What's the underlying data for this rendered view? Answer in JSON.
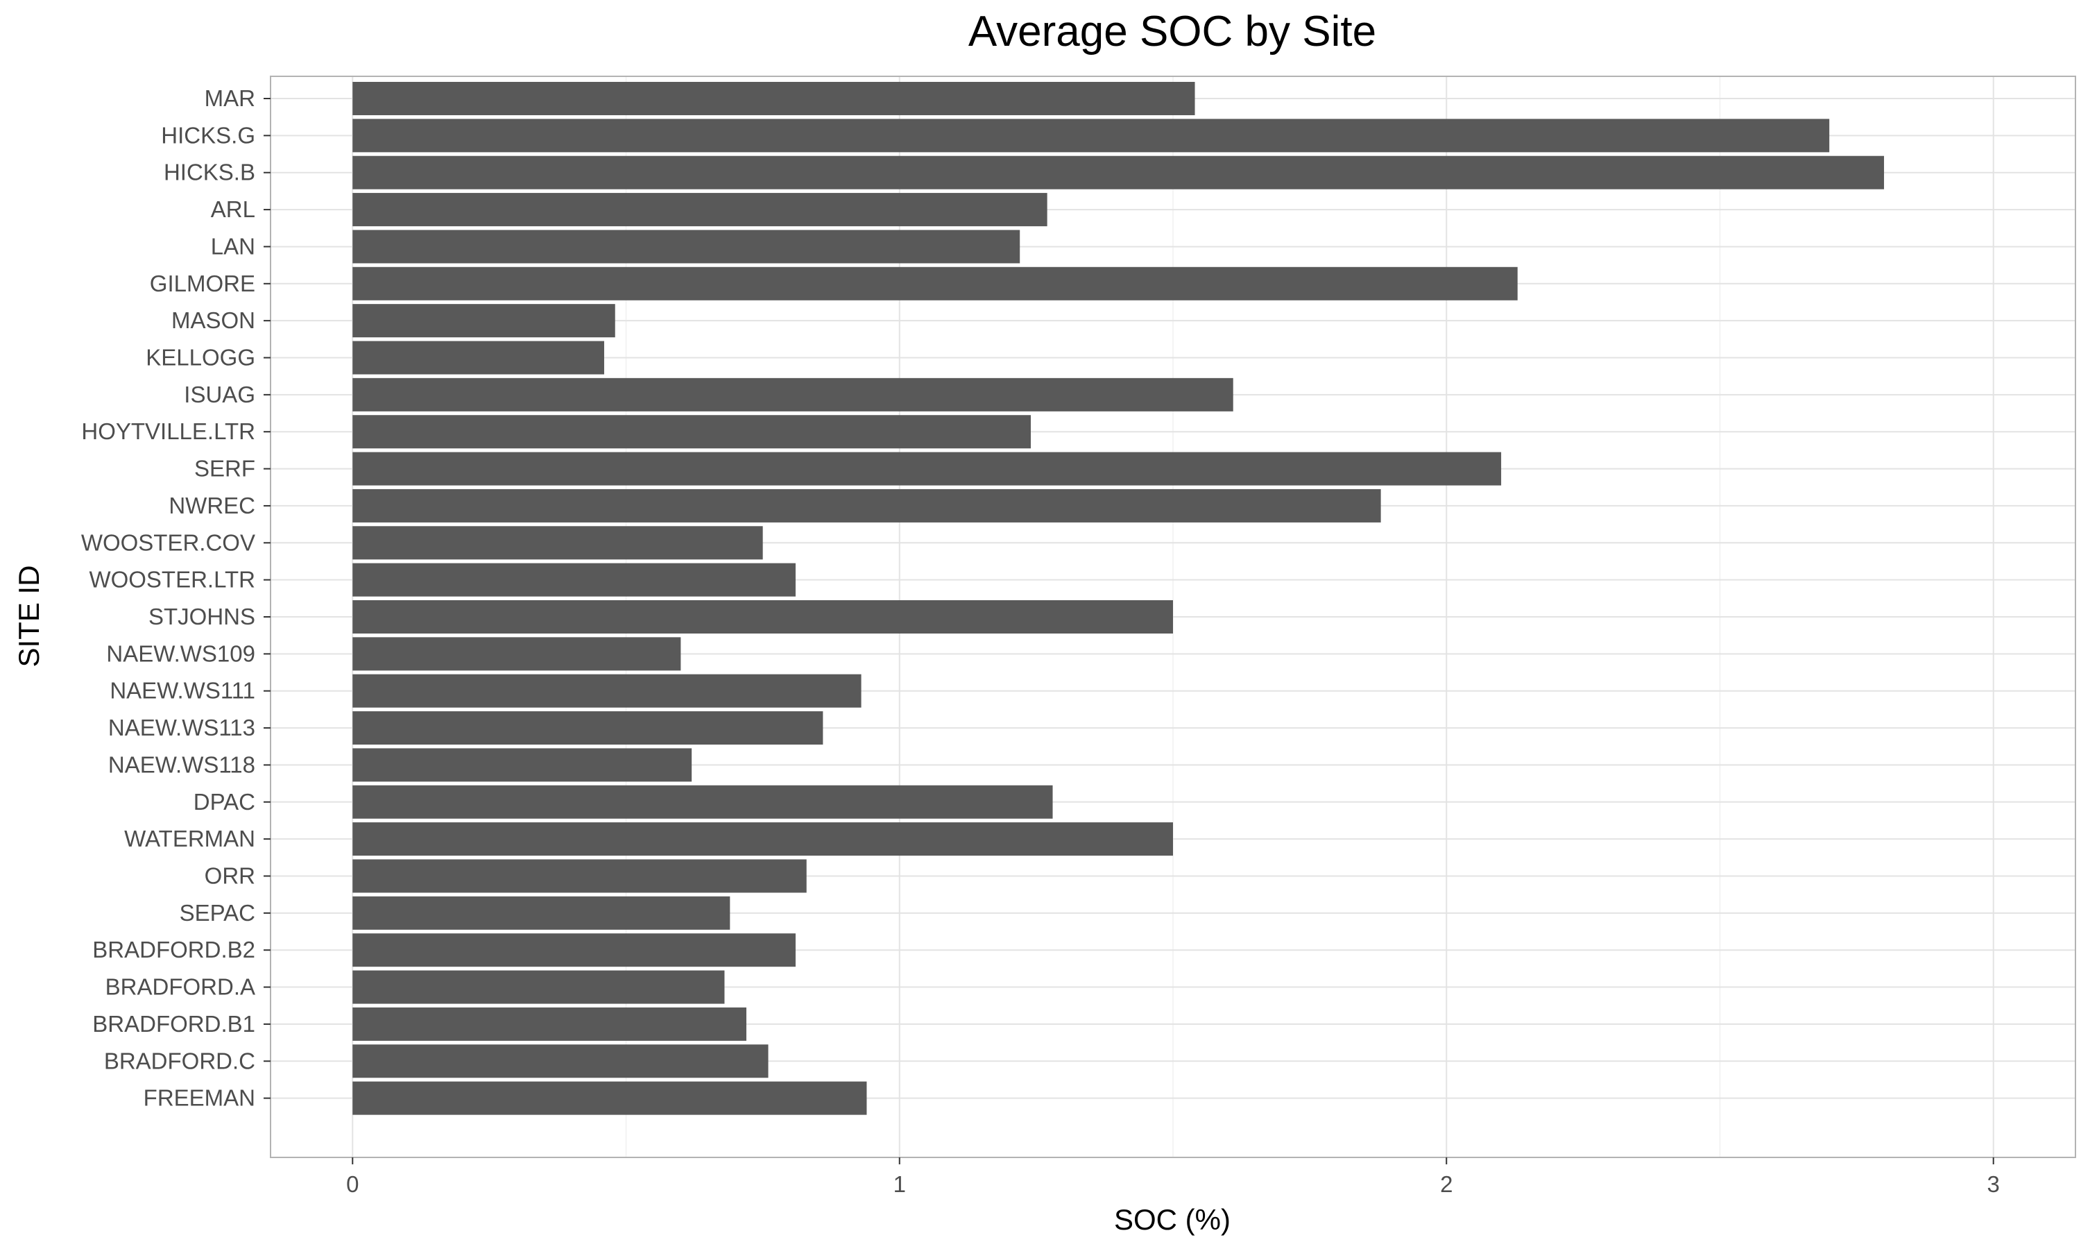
{
  "chart_data": {
    "type": "bar",
    "orientation": "horizontal",
    "title": "Average SOC by Site",
    "xlabel": "SOC (%)",
    "ylabel": "SITE ID",
    "xlim": [
      -0.15,
      3.15
    ],
    "xticks": [
      0,
      1,
      2,
      3
    ],
    "grid": true,
    "legend": "none",
    "bar_color": "#595959",
    "categories": [
      "MAR",
      "HICKS.G",
      "HICKS.B",
      "ARL",
      "LAN",
      "GILMORE",
      "MASON",
      "KELLOGG",
      "ISUAG",
      "HOYTVILLE.LTR",
      "SERF",
      "NWREC",
      "WOOSTER.COV",
      "WOOSTER.LTR",
      "STJOHNS",
      "NAEW.WS109",
      "NAEW.WS111",
      "NAEW.WS113",
      "NAEW.WS118",
      "DPAC",
      "WATERMAN",
      "ORR",
      "SEPAC",
      "BRADFORD.B2",
      "BRADFORD.A",
      "BRADFORD.B1",
      "BRADFORD.C",
      "FREEMAN"
    ],
    "values": [
      1.54,
      2.7,
      2.8,
      1.27,
      1.22,
      2.13,
      0.48,
      0.46,
      1.61,
      1.24,
      2.1,
      1.88,
      0.75,
      0.81,
      1.5,
      0.6,
      0.93,
      0.86,
      0.62,
      1.28,
      1.5,
      0.83,
      0.69,
      0.81,
      0.68,
      0.72,
      0.76,
      0.94
    ]
  }
}
